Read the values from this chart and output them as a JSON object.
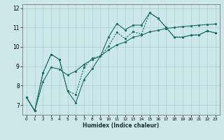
{
  "xlabel": "Humidex (Indice chaleur)",
  "ylabel": "",
  "xlim": [
    -0.5,
    23.5
  ],
  "ylim": [
    6.5,
    12.2
  ],
  "yticks": [
    7,
    8,
    9,
    10,
    11,
    12
  ],
  "xticks": [
    0,
    1,
    2,
    3,
    4,
    5,
    6,
    7,
    8,
    9,
    10,
    11,
    12,
    13,
    14,
    15,
    16,
    17,
    18,
    19,
    20,
    21,
    22,
    23
  ],
  "bg_color": "#cce8e8",
  "line_color": "#1a6e64",
  "grid_color": "#aad0d0",
  "line1_x": [
    0,
    1,
    2,
    3,
    4,
    5,
    6,
    7,
    8,
    9,
    10,
    11,
    12,
    13,
    14,
    15,
    16,
    17,
    18,
    19,
    20,
    21,
    22,
    23
  ],
  "line1_y": [
    7.4,
    6.7,
    8.65,
    9.62,
    9.35,
    7.72,
    7.12,
    8.32,
    8.88,
    9.52,
    10.52,
    11.2,
    10.88,
    11.12,
    11.12,
    11.75,
    11.48,
    11.0,
    10.5,
    10.5,
    10.6,
    10.62,
    10.82,
    10.72
  ],
  "line2_x": [
    0,
    1,
    2,
    3,
    4,
    5,
    6,
    7,
    8,
    9,
    10,
    11,
    12,
    13,
    14,
    15,
    16,
    17,
    18,
    19,
    20,
    21,
    22,
    23
  ],
  "line2_y": [
    7.4,
    6.7,
    8.65,
    9.62,
    9.35,
    7.72,
    7.55,
    8.95,
    9.42,
    9.52,
    10.05,
    10.75,
    10.42,
    10.78,
    10.65,
    11.75,
    11.48,
    11.0,
    10.5,
    10.5,
    10.6,
    10.62,
    10.82,
    10.72
  ],
  "line3_x": [
    0,
    1,
    2,
    3,
    4,
    5,
    6,
    7,
    8,
    9,
    10,
    11,
    12,
    13,
    14,
    15,
    16,
    17,
    18,
    19,
    20,
    21,
    22,
    23
  ],
  "line3_y": [
    7.4,
    6.7,
    8.2,
    8.95,
    8.85,
    8.55,
    8.75,
    9.1,
    9.35,
    9.52,
    9.85,
    10.1,
    10.25,
    10.5,
    10.6,
    10.78,
    10.85,
    10.95,
    11.0,
    11.05,
    11.08,
    11.12,
    11.15,
    11.18
  ]
}
